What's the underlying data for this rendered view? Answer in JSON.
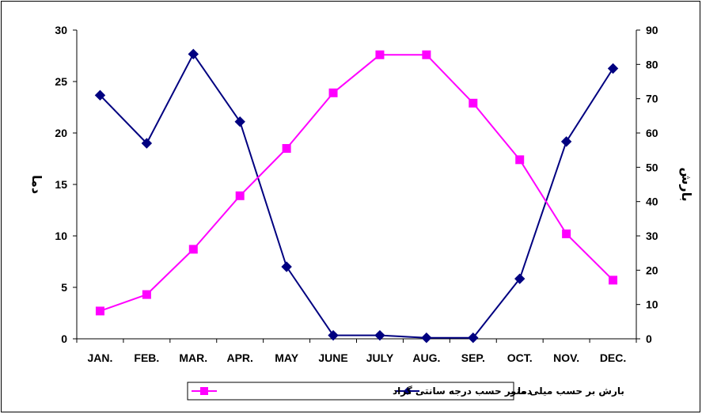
{
  "chart_data": {
    "type": "line",
    "categories": [
      "JAN.",
      "FEB.",
      "MAR.",
      "APR.",
      "MAY",
      "JUNE",
      "JULY",
      "AUG.",
      "SEP.",
      "OCT.",
      "NOV.",
      "DEC."
    ],
    "y_left": {
      "label": "دما",
      "ylim": [
        0,
        30
      ],
      "ticks": [
        0,
        5,
        10,
        15,
        20,
        25,
        30
      ]
    },
    "y_right": {
      "label": "بارش",
      "ylim": [
        0,
        90
      ],
      "ticks": [
        0,
        10,
        20,
        30,
        40,
        50,
        60,
        70,
        80,
        90
      ]
    },
    "grid": false,
    "legend_position": "bottom",
    "series": [
      {
        "name": "بارش بر حسب میلی متر",
        "axis": "right",
        "color": "#000080",
        "marker": "diamond",
        "values": [
          71,
          57,
          83,
          63.3,
          21,
          1,
          1,
          0.3,
          0.3,
          17.5,
          57.5,
          78.8
        ]
      },
      {
        "name": "دما بر حسب درجه سانتی گراد",
        "axis": "left",
        "color": "#ff00ff",
        "marker": "square",
        "values": [
          2.7,
          4.3,
          8.7,
          13.9,
          18.5,
          23.9,
          27.6,
          27.6,
          22.9,
          17.4,
          10.2,
          5.7
        ]
      }
    ]
  }
}
